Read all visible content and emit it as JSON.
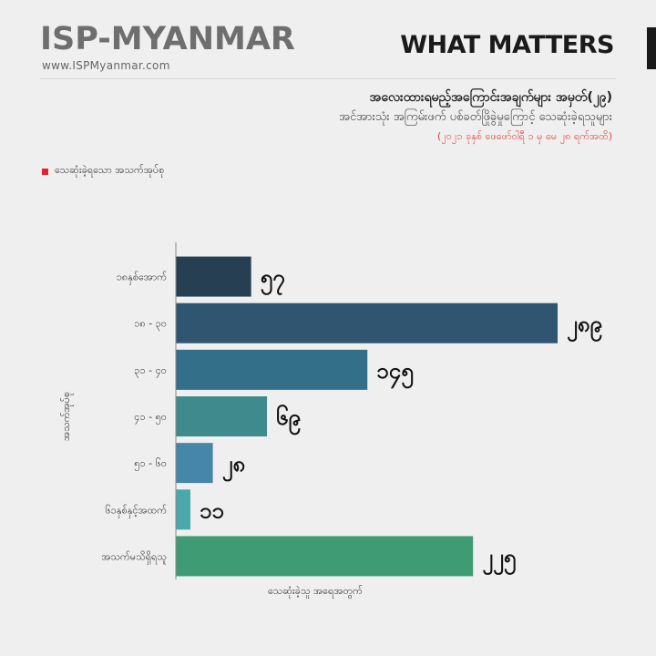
{
  "header": {
    "brand": "ISP-MYANMAR",
    "website": "www.ISPMyanmar.com",
    "section": "WHAT MATTERS"
  },
  "legend": {
    "label": "သေဆုံးခဲ့ရသော အသက်အုပ်စု",
    "color": "#e0262a"
  },
  "chart_data": {
    "type": "bar",
    "orientation": "horizontal",
    "title": "အလေးထားရမည့်အကြောင်းအချက်များ အမှတ်(၂၉)",
    "subtitle": "အင်အားသုံး အကြမ်းဖက် ပစ်ခတ်ဖြိုခွဲမှုကြောင့် သေဆုံးခဲ့ရသူများ",
    "date_range": "(၂၀၂၁ ခုနှစ် ဖေဖော်ဝါရီ ၁ မှ မေ ၂၈ ရက်အထိ)",
    "xlabel": "သေဆုံးခဲ့သူ အရေအတွက်",
    "ylabel": "အသက်အုပ်စု",
    "categories": [
      "၁၈နှစ်အောက်",
      "၁၈ - ၃၀",
      "၃၁ - ၄၀",
      "၄၁ - ၅၀",
      "၅၁ - ၆၀",
      "၆၁နှစ်နှင့်အထက်",
      "အသက်မသိရှိရသူ"
    ],
    "values": [
      57,
      289,
      145,
      69,
      28,
      11,
      225
    ],
    "value_labels": [
      "၅၇",
      "၂၈၉",
      "၁၄၅",
      "၆၉",
      "၂၈",
      "၁၁",
      "၂၂၅"
    ],
    "colors": [
      "#263f53",
      "#2f5571",
      "#336f89",
      "#3f8a8c",
      "#4686a8",
      "#4aa7ab",
      "#3f9b73"
    ],
    "xlim": [
      0,
      300
    ],
    "grid": false
  }
}
